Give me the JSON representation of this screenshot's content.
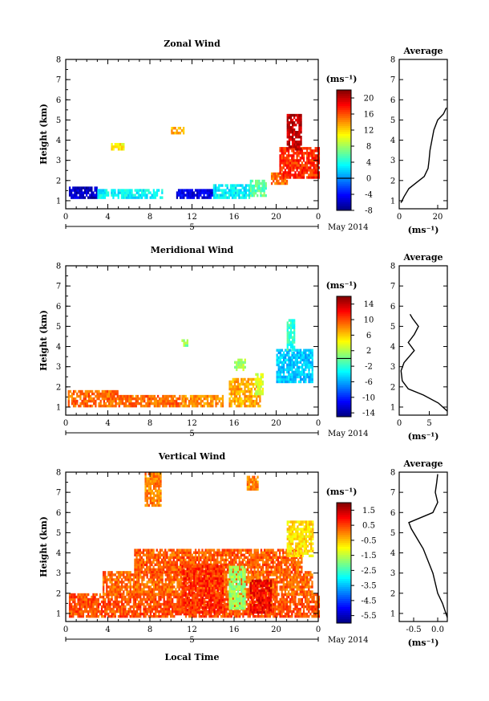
{
  "figure": {
    "xlabel": "Local Time",
    "date_label": "May 2014",
    "date_day": "5",
    "ylabel": "Height (km)",
    "unit": "(ms⁻¹)",
    "average_title": "Average",
    "average_xlabel": "(ms⁻¹)"
  },
  "chart_data": [
    {
      "type": "heatmap",
      "title": "Zonal Wind",
      "x_ticks": [
        "0",
        "4",
        "8",
        "12",
        "16",
        "20",
        "0"
      ],
      "x_range": [
        0,
        24
      ],
      "y_ticks": [
        "1",
        "2",
        "3",
        "4",
        "5",
        "6",
        "7",
        "8"
      ],
      "y_range": [
        0.6,
        8
      ],
      "colorbar_range": [
        -8,
        22
      ],
      "colorbar_ticks": [
        "20",
        "16",
        "12",
        "8",
        "4",
        "0",
        "-4",
        "-8"
      ],
      "zero_line": 0,
      "patches": [
        {
          "x": [
            0.3,
            3
          ],
          "y": [
            1.1,
            1.7
          ],
          "value": -6
        },
        {
          "x": [
            3,
            9.2
          ],
          "y": [
            1.1,
            1.5
          ],
          "value": 3
        },
        {
          "x": [
            10.5,
            14
          ],
          "y": [
            1.1,
            1.5
          ],
          "value": -5
        },
        {
          "x": [
            14,
            17.5
          ],
          "y": [
            1.1,
            1.8
          ],
          "value": 3
        },
        {
          "x": [
            17.5,
            19
          ],
          "y": [
            1.2,
            2.0
          ],
          "value": 6
        },
        {
          "x": [
            19.5,
            21
          ],
          "y": [
            1.8,
            2.3
          ],
          "value": 15
        },
        {
          "x": [
            20.3,
            24
          ],
          "y": [
            2.1,
            3.6
          ],
          "value": 17
        },
        {
          "x": [
            21,
            22.3
          ],
          "y": [
            3.5,
            5.3
          ],
          "value": 20
        },
        {
          "x": [
            10,
            11.2
          ],
          "y": [
            4.3,
            4.6
          ],
          "value": 13
        },
        {
          "x": [
            4.3,
            5.5
          ],
          "y": [
            3.5,
            3.8
          ],
          "value": 11
        }
      ],
      "average": {
        "x_ticks": [
          "0",
          "20"
        ],
        "x_range": [
          0,
          25
        ],
        "profile": [
          [
            0.9,
            0.9
          ],
          [
            1.2,
            2.5
          ],
          [
            1.6,
            5
          ],
          [
            1.9,
            9
          ],
          [
            2.2,
            13
          ],
          [
            2.6,
            15
          ],
          [
            3.0,
            15.5
          ],
          [
            3.5,
            16
          ],
          [
            4.0,
            17
          ],
          [
            4.5,
            18
          ],
          [
            5.0,
            20
          ],
          [
            5.3,
            23
          ],
          [
            5.6,
            24.5
          ]
        ]
      }
    },
    {
      "type": "heatmap",
      "title": "Meridional Wind",
      "x_ticks": [
        "0",
        "4",
        "8",
        "12",
        "16",
        "20",
        "0"
      ],
      "x_range": [
        0,
        24
      ],
      "y_ticks": [
        "1",
        "2",
        "3",
        "4",
        "5",
        "6",
        "7",
        "8"
      ],
      "y_range": [
        0.6,
        8
      ],
      "colorbar_range": [
        -15,
        16
      ],
      "colorbar_ticks": [
        "14",
        "10",
        "6",
        "2",
        "-2",
        "-6",
        "-10",
        "-14"
      ],
      "zero_line": 0,
      "patches": [
        {
          "x": [
            0.2,
            5
          ],
          "y": [
            1.0,
            1.8
          ],
          "value": 9
        },
        {
          "x": [
            5,
            11
          ],
          "y": [
            1.0,
            1.6
          ],
          "value": 9
        },
        {
          "x": [
            11,
            15
          ],
          "y": [
            1.0,
            1.5
          ],
          "value": 8
        },
        {
          "x": [
            15.5,
            18.5
          ],
          "y": [
            1.0,
            2.4
          ],
          "value": 7
        },
        {
          "x": [
            18,
            18.8
          ],
          "y": [
            1.6,
            2.6
          ],
          "value": 3
        },
        {
          "x": [
            20,
            23.5
          ],
          "y": [
            2.2,
            3.8
          ],
          "value": -5
        },
        {
          "x": [
            21,
            21.8
          ],
          "y": [
            3.8,
            5.3
          ],
          "value": -2
        },
        {
          "x": [
            16,
            17
          ],
          "y": [
            2.8,
            3.3
          ],
          "value": 2
        },
        {
          "x": [
            11,
            11.6
          ],
          "y": [
            4.0,
            4.3
          ],
          "value": 1
        }
      ],
      "average": {
        "x_ticks": [
          "0",
          "5"
        ],
        "x_range": [
          0,
          8
        ],
        "profile": [
          [
            0.8,
            8
          ],
          [
            1.2,
            6.5
          ],
          [
            1.6,
            4
          ],
          [
            1.9,
            1.5
          ],
          [
            2.3,
            0.5
          ],
          [
            2.8,
            0.3
          ],
          [
            3.2,
            0.8
          ],
          [
            3.8,
            2.5
          ],
          [
            4.2,
            1.5
          ],
          [
            4.6,
            2.5
          ],
          [
            5.0,
            3.2
          ],
          [
            5.4,
            2.2
          ],
          [
            5.6,
            1.8
          ]
        ]
      }
    },
    {
      "type": "heatmap",
      "title": "Vertical Wind",
      "x_ticks": [
        "0",
        "4",
        "8",
        "12",
        "16",
        "20",
        "0"
      ],
      "x_range": [
        0,
        24
      ],
      "y_ticks": [
        "1",
        "2",
        "3",
        "4",
        "5",
        "6",
        "7",
        "8"
      ],
      "y_range": [
        0.6,
        8
      ],
      "colorbar_range": [
        -6,
        2
      ],
      "colorbar_ticks": [
        "1.5",
        "0.5",
        "-0.5",
        "-1.5",
        "-2.5",
        "-3.5",
        "-4.5",
        "-5.5"
      ],
      "zero_line": null,
      "patches": [
        {
          "x": [
            0.3,
            24
          ],
          "y": [
            0.8,
            1.9
          ],
          "value": 0.4
        },
        {
          "x": [
            3.5,
            23.5
          ],
          "y": [
            1.9,
            3.0
          ],
          "value": 0.2
        },
        {
          "x": [
            6.5,
            22.5
          ],
          "y": [
            3.0,
            4.2
          ],
          "value": 0.3
        },
        {
          "x": [
            11,
            15
          ],
          "y": [
            1.0,
            3.3
          ],
          "value": 0.7
        },
        {
          "x": [
            15.5,
            17
          ],
          "y": [
            1.2,
            3.3
          ],
          "value": -1.8
        },
        {
          "x": [
            17.5,
            19.5
          ],
          "y": [
            1.0,
            2.6
          ],
          "value": 1.1
        },
        {
          "x": [
            21,
            23.5
          ],
          "y": [
            3.8,
            5.5
          ],
          "value": -0.8
        },
        {
          "x": [
            7.5,
            9
          ],
          "y": [
            6.3,
            7.9
          ],
          "value": 0.0
        },
        {
          "x": [
            17.2,
            18.2
          ],
          "y": [
            7.1,
            7.8
          ],
          "value": 0.0
        }
      ],
      "average": {
        "x_ticks": [
          "-0.5",
          "0.0"
        ],
        "x_range": [
          -0.8,
          0.2
        ],
        "profile": [
          [
            0.8,
            0.2
          ],
          [
            1.5,
            0.1
          ],
          [
            2.0,
            0.0
          ],
          [
            2.5,
            -0.05
          ],
          [
            3.0,
            -0.1
          ],
          [
            3.6,
            -0.2
          ],
          [
            4.2,
            -0.3
          ],
          [
            4.6,
            -0.4
          ],
          [
            5.2,
            -0.55
          ],
          [
            5.5,
            -0.6
          ],
          [
            5.8,
            -0.3
          ],
          [
            6.0,
            -0.1
          ],
          [
            6.5,
            0.0
          ],
          [
            7.0,
            -0.05
          ],
          [
            7.5,
            -0.02
          ],
          [
            7.9,
            0.0
          ]
        ]
      }
    }
  ]
}
